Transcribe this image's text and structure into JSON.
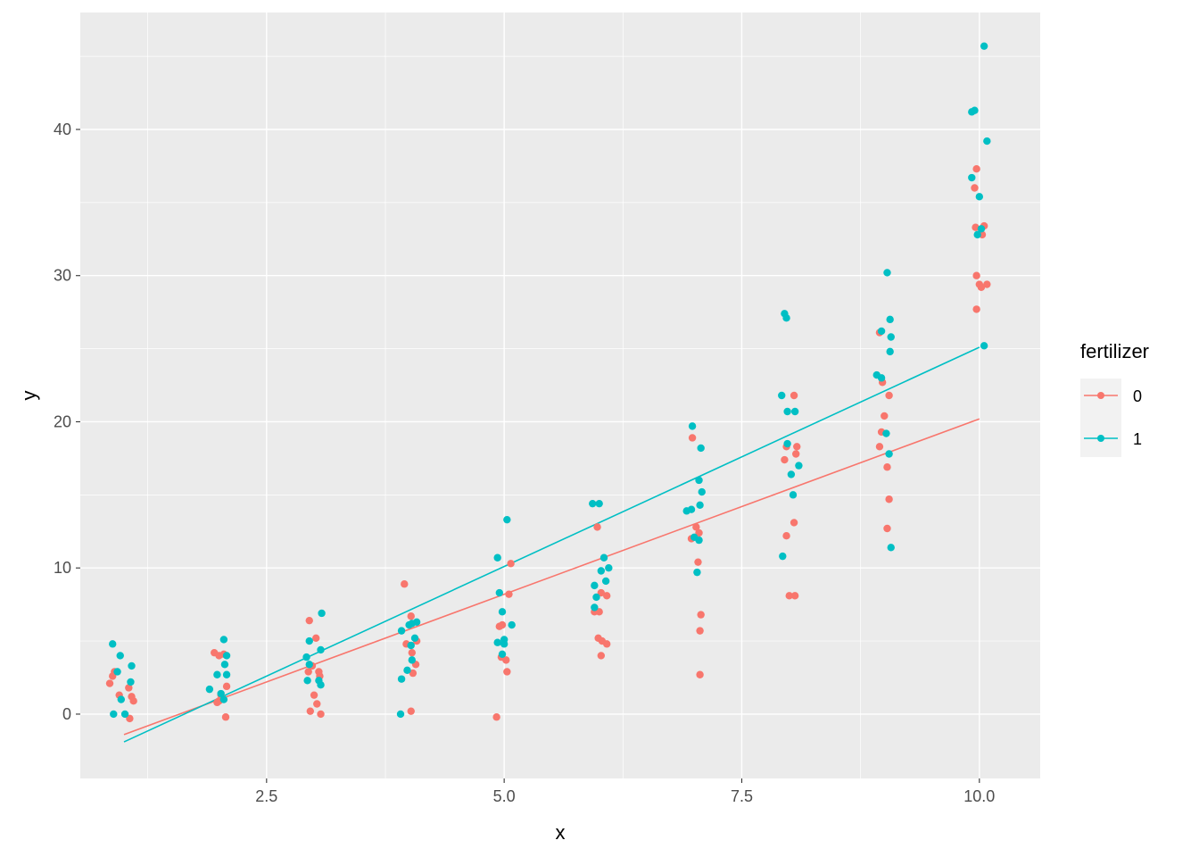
{
  "chart_data": {
    "type": "scatter",
    "title": "",
    "xlabel": "x",
    "ylabel": "y",
    "xlim": [
      0.54,
      10.64
    ],
    "ylim": [
      -4.4,
      48.0
    ],
    "x_ticks": [
      2.5,
      5.0,
      7.5,
      10.0
    ],
    "x_tick_labels": [
      "2.5",
      "5.0",
      "7.5",
      "10.0"
    ],
    "y_ticks": [
      0,
      10,
      20,
      30,
      40
    ],
    "y_tick_labels": [
      "0",
      "10",
      "20",
      "30",
      "40"
    ],
    "grid": true,
    "legend": {
      "title": "fertilizer",
      "placement": "right"
    },
    "series": [
      {
        "name": "0",
        "color": "#F8766D",
        "points": [
          [
            0.85,
            2.1
          ],
          [
            0.9,
            2.9
          ],
          [
            0.95,
            1.3
          ],
          [
            1.05,
            1.8
          ],
          [
            1.08,
            1.2
          ],
          [
            1.1,
            0.9
          ],
          [
            1.06,
            -0.3
          ],
          [
            0.88,
            2.6
          ],
          [
            1.95,
            4.2
          ],
          [
            2.0,
            4.0
          ],
          [
            2.05,
            4.1
          ],
          [
            2.02,
            1.3
          ],
          [
            1.98,
            0.8
          ],
          [
            2.08,
            1.9
          ],
          [
            2.07,
            -0.2
          ],
          [
            2.0,
            0.9
          ],
          [
            2.95,
            6.4
          ],
          [
            3.02,
            5.2
          ],
          [
            2.98,
            3.3
          ],
          [
            3.05,
            2.9
          ],
          [
            3.0,
            1.3
          ],
          [
            3.03,
            0.7
          ],
          [
            2.96,
            0.2
          ],
          [
            3.07,
            0.0
          ],
          [
            3.06,
            2.6
          ],
          [
            2.94,
            2.9
          ],
          [
            3.95,
            8.9
          ],
          [
            4.02,
            6.7
          ],
          [
            4.08,
            5.0
          ],
          [
            3.97,
            4.8
          ],
          [
            4.03,
            4.2
          ],
          [
            4.07,
            3.4
          ],
          [
            4.04,
            2.8
          ],
          [
            4.02,
            0.2
          ],
          [
            4.92,
            -0.2
          ],
          [
            4.95,
            6.0
          ],
          [
            4.98,
            6.1
          ],
          [
            5.05,
            8.2
          ],
          [
            5.07,
            10.3
          ],
          [
            4.97,
            3.9
          ],
          [
            5.02,
            3.7
          ],
          [
            5.03,
            2.9
          ],
          [
            5.98,
            12.8
          ],
          [
            5.95,
            7.0
          ],
          [
            6.0,
            7.0
          ],
          [
            6.02,
            8.3
          ],
          [
            6.08,
            8.1
          ],
          [
            5.99,
            5.2
          ],
          [
            6.03,
            5.0
          ],
          [
            6.08,
            4.8
          ],
          [
            6.02,
            4.0
          ],
          [
            6.98,
            18.9
          ],
          [
            7.02,
            12.8
          ],
          [
            6.97,
            12.0
          ],
          [
            7.05,
            12.4
          ],
          [
            7.04,
            10.4
          ],
          [
            7.07,
            6.8
          ],
          [
            7.06,
            5.7
          ],
          [
            7.06,
            2.7
          ],
          [
            7.97,
            18.3
          ],
          [
            8.05,
            21.8
          ],
          [
            7.95,
            17.4
          ],
          [
            8.08,
            18.3
          ],
          [
            8.07,
            17.8
          ],
          [
            7.97,
            12.2
          ],
          [
            8.05,
            13.1
          ],
          [
            8.0,
            8.1
          ],
          [
            8.06,
            8.1
          ],
          [
            8.95,
            26.1
          ],
          [
            8.98,
            22.7
          ],
          [
            9.0,
            20.4
          ],
          [
            8.97,
            19.3
          ],
          [
            8.95,
            18.3
          ],
          [
            9.05,
            21.8
          ],
          [
            9.03,
            16.9
          ],
          [
            9.05,
            14.7
          ],
          [
            9.03,
            12.7
          ],
          [
            9.97,
            37.3
          ],
          [
            9.95,
            36.0
          ],
          [
            9.96,
            33.3
          ],
          [
            10.05,
            33.4
          ],
          [
            9.97,
            30.0
          ],
          [
            10.0,
            29.4
          ],
          [
            10.08,
            29.4
          ],
          [
            10.02,
            29.2
          ],
          [
            9.97,
            27.7
          ],
          [
            10.03,
            32.8
          ]
        ],
        "fit": {
          "x": [
            1.0,
            10.0
          ],
          "y": [
            -1.4,
            20.2
          ]
        }
      },
      {
        "name": "1",
        "color": "#00BFC4",
        "points": [
          [
            0.88,
            4.8
          ],
          [
            0.96,
            4.0
          ],
          [
            1.08,
            3.3
          ],
          [
            1.07,
            2.2
          ],
          [
            0.93,
            2.9
          ],
          [
            0.97,
            1.0
          ],
          [
            0.89,
            0.0
          ],
          [
            1.01,
            0.0
          ],
          [
            2.05,
            5.1
          ],
          [
            2.08,
            4.0
          ],
          [
            2.06,
            3.4
          ],
          [
            1.98,
            2.7
          ],
          [
            2.08,
            2.7
          ],
          [
            2.02,
            1.4
          ],
          [
            1.9,
            1.7
          ],
          [
            2.05,
            1.0
          ],
          [
            2.95,
            5.0
          ],
          [
            3.08,
            6.9
          ],
          [
            2.92,
            3.9
          ],
          [
            3.07,
            4.4
          ],
          [
            2.95,
            3.4
          ],
          [
            3.05,
            2.3
          ],
          [
            2.93,
            2.3
          ],
          [
            3.07,
            2.0
          ],
          [
            3.92,
            5.7
          ],
          [
            4.03,
            6.2
          ],
          [
            4.06,
            5.2
          ],
          [
            4.02,
            4.7
          ],
          [
            4.03,
            3.7
          ],
          [
            3.98,
            3.0
          ],
          [
            3.92,
            2.4
          ],
          [
            3.91,
            0.0
          ],
          [
            4.08,
            6.3
          ],
          [
            4.0,
            6.1
          ],
          [
            4.93,
            10.7
          ],
          [
            5.03,
            13.3
          ],
          [
            4.95,
            8.3
          ],
          [
            4.98,
            7.0
          ],
          [
            5.08,
            6.1
          ],
          [
            4.93,
            4.9
          ],
          [
            5.0,
            5.1
          ],
          [
            5.0,
            4.8
          ],
          [
            4.98,
            4.1
          ],
          [
            5.93,
            14.4
          ],
          [
            6.0,
            14.4
          ],
          [
            6.05,
            10.7
          ],
          [
            6.1,
            10.0
          ],
          [
            6.07,
            9.1
          ],
          [
            6.02,
            9.8
          ],
          [
            5.95,
            8.8
          ],
          [
            5.97,
            8.0
          ],
          [
            5.95,
            7.3
          ],
          [
            6.98,
            19.7
          ],
          [
            7.07,
            18.2
          ],
          [
            7.05,
            16.0
          ],
          [
            7.08,
            15.2
          ],
          [
            7.06,
            14.3
          ],
          [
            6.92,
            13.9
          ],
          [
            6.97,
            14.0
          ],
          [
            7.0,
            12.1
          ],
          [
            7.05,
            11.9
          ],
          [
            7.03,
            9.7
          ],
          [
            7.95,
            27.4
          ],
          [
            7.97,
            27.1
          ],
          [
            7.92,
            21.8
          ],
          [
            7.98,
            20.7
          ],
          [
            8.06,
            20.7
          ],
          [
            7.98,
            18.5
          ],
          [
            8.02,
            16.4
          ],
          [
            8.1,
            17.0
          ],
          [
            8.04,
            15.0
          ],
          [
            7.93,
            10.8
          ],
          [
            9.03,
            30.2
          ],
          [
            8.97,
            26.2
          ],
          [
            9.06,
            27.0
          ],
          [
            9.07,
            25.8
          ],
          [
            9.06,
            24.8
          ],
          [
            8.92,
            23.2
          ],
          [
            8.97,
            23.0
          ],
          [
            9.02,
            19.2
          ],
          [
            9.05,
            17.8
          ],
          [
            9.07,
            11.4
          ],
          [
            10.05,
            45.7
          ],
          [
            9.92,
            41.2
          ],
          [
            9.95,
            41.3
          ],
          [
            9.92,
            36.7
          ],
          [
            10.08,
            39.2
          ],
          [
            10.0,
            35.4
          ],
          [
            9.98,
            32.8
          ],
          [
            10.02,
            33.2
          ],
          [
            10.05,
            25.2
          ]
        ],
        "fit": {
          "x": [
            1.0,
            10.0
          ],
          "y": [
            -1.9,
            25.1
          ]
        }
      }
    ],
    "colors": {
      "panel_background": "#EBEBEB",
      "grid_major": "#FFFFFF",
      "tick_text": "#4D4D4D"
    }
  }
}
